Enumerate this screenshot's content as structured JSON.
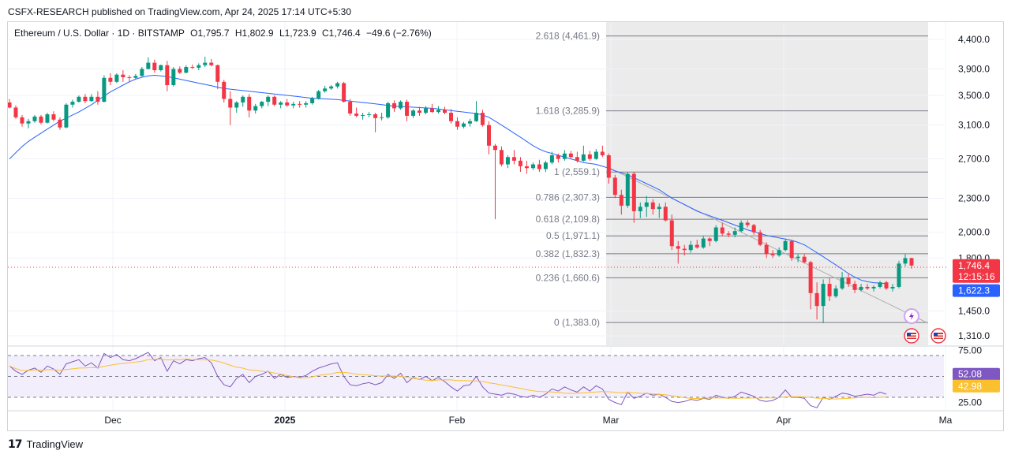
{
  "header": {
    "publisher": "CSFX-RESEARCH published on TradingView.com, Apr 24, 2025 17:14 UTC+5:30"
  },
  "legend": {
    "symbol": "Ethereum / U.S. Dollar · 1D · BITSTAMP",
    "open": "O1,795.7",
    "high": "H1,802.9",
    "low": "L1,723.9",
    "close": "C1,746.4",
    "change": "−49.6 (−2.76%)"
  },
  "footer": {
    "brand": "TradingView"
  },
  "colors": {
    "up": "#089981",
    "down": "#f23645",
    "ma": "#2962ff",
    "rsi": "#7e57c2",
    "rsi_ma": "#fbc02d",
    "fib": "#787b86"
  },
  "badges": {
    "price": "1,746.4",
    "countdown": "12:15:16",
    "ma": "1,622.3",
    "rsi": "52.08",
    "rsi_ma": "42.98"
  },
  "chart_data": {
    "type": "candlestick",
    "x_ticks": [
      "Dec",
      "2025",
      "Feb",
      "Mar",
      "Apr",
      "Ma"
    ],
    "y_ticks": [
      "4,400.0",
      "3,900.0",
      "3,500.0",
      "3,100.0",
      "2,700.0",
      "2,300.0",
      "2,000.0",
      "1,800.0",
      "1,450.0",
      "1,310.0"
    ],
    "y_scale": "log",
    "fib_levels": [
      {
        "label": "2.618 (4,461.9)",
        "value": 4461.9
      },
      {
        "label": "1.618 (3,285.9)",
        "value": 3285.9
      },
      {
        "label": "1 (2,559.1)",
        "value": 2559.1
      },
      {
        "label": "0.786 (2,307.3)",
        "value": 2307.3
      },
      {
        "label": "0.618 (2,109.8)",
        "value": 2109.8
      },
      {
        "label": "0.5 (1,971.1)",
        "value": 1971.1
      },
      {
        "label": "0.382 (1,832.3)",
        "value": 1832.3
      },
      {
        "label": "0.236 (1,660.6)",
        "value": 1660.6
      },
      {
        "label": "0 (1,383.0)",
        "value": 1383.0
      }
    ],
    "ohlc": [
      [
        3400,
        3450,
        3320,
        3330
      ],
      [
        3330,
        3360,
        3180,
        3200
      ],
      [
        3200,
        3230,
        3080,
        3120
      ],
      [
        3120,
        3180,
        3060,
        3150
      ],
      [
        3150,
        3230,
        3130,
        3210
      ],
      [
        3210,
        3230,
        3110,
        3130
      ],
      [
        3130,
        3260,
        3120,
        3240
      ],
      [
        3240,
        3280,
        3150,
        3170
      ],
      [
        3170,
        3200,
        3040,
        3070
      ],
      [
        3070,
        3390,
        3060,
        3370
      ],
      [
        3370,
        3440,
        3330,
        3410
      ],
      [
        3410,
        3500,
        3400,
        3480
      ],
      [
        3480,
        3520,
        3390,
        3420
      ],
      [
        3420,
        3520,
        3410,
        3480
      ],
      [
        3480,
        3560,
        3370,
        3410
      ],
      [
        3410,
        3800,
        3400,
        3760
      ],
      [
        3760,
        3830,
        3650,
        3700
      ],
      [
        3700,
        3830,
        3680,
        3810
      ],
      [
        3810,
        3880,
        3700,
        3770
      ],
      [
        3770,
        3800,
        3700,
        3760
      ],
      [
        3760,
        3820,
        3740,
        3790
      ],
      [
        3790,
        3930,
        3780,
        3900
      ],
      [
        3900,
        4090,
        3890,
        4000
      ],
      [
        4000,
        4050,
        3840,
        3880
      ],
      [
        3880,
        3970,
        3860,
        3960
      ],
      [
        3960,
        4030,
        3560,
        3650
      ],
      [
        3650,
        3930,
        3630,
        3900
      ],
      [
        3900,
        3940,
        3820,
        3840
      ],
      [
        3840,
        3960,
        3830,
        3930
      ],
      [
        3930,
        3970,
        3900,
        3920
      ],
      [
        3920,
        3990,
        3880,
        3960
      ],
      [
        3960,
        4100,
        3930,
        4000
      ],
      [
        4000,
        4060,
        3940,
        3960
      ],
      [
        3960,
        3970,
        3590,
        3700
      ],
      [
        3700,
        3730,
        3400,
        3450
      ],
      [
        3450,
        3560,
        3100,
        3330
      ],
      [
        3330,
        3420,
        3260,
        3400
      ],
      [
        3400,
        3500,
        3340,
        3480
      ],
      [
        3480,
        3520,
        3200,
        3290
      ],
      [
        3290,
        3380,
        3250,
        3350
      ],
      [
        3350,
        3420,
        3320,
        3410
      ],
      [
        3410,
        3500,
        3350,
        3480
      ],
      [
        3480,
        3500,
        3350,
        3370
      ],
      [
        3370,
        3420,
        3320,
        3400
      ],
      [
        3400,
        3450,
        3340,
        3360
      ],
      [
        3360,
        3410,
        3320,
        3380
      ],
      [
        3380,
        3420,
        3330,
        3370
      ],
      [
        3370,
        3420,
        3330,
        3390
      ],
      [
        3390,
        3480,
        3370,
        3460
      ],
      [
        3460,
        3580,
        3440,
        3560
      ],
      [
        3560,
        3640,
        3540,
        3600
      ],
      [
        3600,
        3650,
        3580,
        3630
      ],
      [
        3630,
        3700,
        3600,
        3680
      ],
      [
        3680,
        3700,
        3400,
        3410
      ],
      [
        3410,
        3450,
        3220,
        3250
      ],
      [
        3250,
        3330,
        3200,
        3220
      ],
      [
        3220,
        3260,
        3170,
        3230
      ],
      [
        3230,
        3270,
        3200,
        3240
      ],
      [
        3240,
        3260,
        3010,
        3190
      ],
      [
        3190,
        3260,
        3160,
        3200
      ],
      [
        3200,
        3410,
        3180,
        3390
      ],
      [
        3390,
        3430,
        3270,
        3320
      ],
      [
        3320,
        3430,
        3300,
        3410
      ],
      [
        3410,
        3440,
        3150,
        3220
      ],
      [
        3220,
        3310,
        3190,
        3290
      ],
      [
        3290,
        3340,
        3220,
        3260
      ],
      [
        3260,
        3350,
        3240,
        3320
      ],
      [
        3320,
        3380,
        3260,
        3270
      ],
      [
        3270,
        3350,
        3250,
        3300
      ],
      [
        3300,
        3340,
        3240,
        3260
      ],
      [
        3260,
        3310,
        3120,
        3150
      ],
      [
        3150,
        3200,
        3040,
        3080
      ],
      [
        3080,
        3140,
        3060,
        3120
      ],
      [
        3120,
        3180,
        3080,
        3150
      ],
      [
        3150,
        3420,
        3140,
        3260
      ],
      [
        3260,
        3300,
        3080,
        3100
      ],
      [
        3100,
        3150,
        2750,
        2850
      ],
      [
        2850,
        2870,
        2110,
        2800
      ],
      [
        2800,
        2840,
        2620,
        2640
      ],
      [
        2640,
        2740,
        2600,
        2720
      ],
      [
        2720,
        2800,
        2640,
        2680
      ],
      [
        2680,
        2720,
        2560,
        2620
      ],
      [
        2620,
        2680,
        2540,
        2600
      ],
      [
        2600,
        2660,
        2580,
        2640
      ],
      [
        2640,
        2690,
        2560,
        2590
      ],
      [
        2590,
        2680,
        2560,
        2660
      ],
      [
        2660,
        2780,
        2640,
        2740
      ],
      [
        2740,
        2760,
        2660,
        2700
      ],
      [
        2700,
        2800,
        2680,
        2760
      ],
      [
        2760,
        2790,
        2700,
        2720
      ],
      [
        2720,
        2780,
        2660,
        2680
      ],
      [
        2680,
        2850,
        2670,
        2750
      ],
      [
        2750,
        2790,
        2680,
        2700
      ],
      [
        2700,
        2810,
        2690,
        2780
      ],
      [
        2780,
        2850,
        2720,
        2740
      ],
      [
        2740,
        2760,
        2440,
        2500
      ],
      [
        2500,
        2530,
        2300,
        2330
      ],
      [
        2330,
        2380,
        2150,
        2230
      ],
      [
        2230,
        2560,
        2210,
        2540
      ],
      [
        2540,
        2560,
        2080,
        2180
      ],
      [
        2180,
        2260,
        2120,
        2220
      ],
      [
        2220,
        2320,
        2130,
        2260
      ],
      [
        2260,
        2290,
        2150,
        2200
      ],
      [
        2200,
        2250,
        2120,
        2220
      ],
      [
        2220,
        2260,
        2090,
        2100
      ],
      [
        2100,
        2150,
        1860,
        1890
      ],
      [
        1890,
        1930,
        1760,
        1870
      ],
      [
        1870,
        1900,
        1820,
        1860
      ],
      [
        1860,
        1930,
        1840,
        1900
      ],
      [
        1900,
        1940,
        1870,
        1880
      ],
      [
        1880,
        1970,
        1870,
        1950
      ],
      [
        1950,
        1960,
        1890,
        1930
      ],
      [
        1930,
        2060,
        1920,
        2040
      ],
      [
        2040,
        2080,
        1970,
        1990
      ],
      [
        1990,
        2010,
        1960,
        1980
      ],
      [
        1980,
        2040,
        1960,
        2010
      ],
      [
        2010,
        2100,
        2000,
        2080
      ],
      [
        2080,
        2100,
        2040,
        2060
      ],
      [
        2060,
        2070,
        1980,
        2000
      ],
      [
        2000,
        2020,
        1890,
        1900
      ],
      [
        1900,
        1920,
        1800,
        1830
      ],
      [
        1830,
        1860,
        1800,
        1820
      ],
      [
        1820,
        1880,
        1810,
        1860
      ],
      [
        1860,
        1950,
        1850,
        1930
      ],
      [
        1930,
        1940,
        1780,
        1800
      ],
      [
        1800,
        1830,
        1770,
        1810
      ],
      [
        1810,
        1830,
        1760,
        1770
      ],
      [
        1770,
        1780,
        1460,
        1560
      ],
      [
        1560,
        1630,
        1400,
        1480
      ],
      [
        1480,
        1650,
        1380,
        1620
      ],
      [
        1620,
        1660,
        1510,
        1540
      ],
      [
        1540,
        1610,
        1530,
        1590
      ],
      [
        1590,
        1700,
        1580,
        1660
      ],
      [
        1660,
        1690,
        1600,
        1620
      ],
      [
        1620,
        1640,
        1560,
        1580
      ],
      [
        1580,
        1620,
        1570,
        1600
      ],
      [
        1600,
        1620,
        1580,
        1590
      ],
      [
        1590,
        1610,
        1570,
        1600
      ],
      [
        1600,
        1640,
        1590,
        1630
      ],
      [
        1630,
        1640,
        1580,
        1590
      ],
      [
        1590,
        1620,
        1570,
        1600
      ],
      [
        1600,
        1780,
        1590,
        1760
      ],
      [
        1760,
        1830,
        1740,
        1800
      ],
      [
        1800,
        1803,
        1724,
        1746
      ]
    ],
    "ma_20": [
      2700,
      2770,
      2840,
      2900,
      2950,
      3000,
      3050,
      3100,
      3150,
      3190,
      3230,
      3270,
      3320,
      3370,
      3430,
      3490,
      3550,
      3600,
      3650,
      3700,
      3740,
      3770,
      3790,
      3800,
      3790,
      3780,
      3760,
      3740,
      3720,
      3700,
      3680,
      3660,
      3640,
      3620,
      3600,
      3590,
      3580,
      3570,
      3560,
      3550,
      3540,
      3530,
      3520,
      3510,
      3500,
      3490,
      3480,
      3470,
      3460,
      3455,
      3450,
      3445,
      3440,
      3430,
      3420,
      3410,
      3400,
      3390,
      3380,
      3370,
      3360,
      3350,
      3345,
      3340,
      3335,
      3330,
      3325,
      3320,
      3310,
      3300,
      3290,
      3280,
      3270,
      3260,
      3250,
      3230,
      3200,
      3150,
      3100,
      3050,
      3000,
      2950,
      2900,
      2850,
      2810,
      2780,
      2760,
      2740,
      2720,
      2700,
      2680,
      2660,
      2650,
      2640,
      2620,
      2600,
      2570,
      2550,
      2530,
      2500,
      2470,
      2440,
      2410,
      2380,
      2340,
      2300,
      2270,
      2240,
      2210,
      2180,
      2160,
      2140,
      2120,
      2100,
      2080,
      2060,
      2040,
      2020,
      2005,
      1990,
      1975,
      1965,
      1955,
      1945,
      1935,
      1920,
      1900,
      1870,
      1840,
      1810,
      1780,
      1750,
      1720,
      1690,
      1665,
      1645,
      1635,
      1628,
      1625,
      1622
    ],
    "rsi": [
      60,
      55,
      52,
      56,
      58,
      54,
      60,
      57,
      52,
      62,
      64,
      66,
      60,
      63,
      58,
      72,
      68,
      71,
      66,
      65,
      67,
      70,
      73,
      65,
      68,
      55,
      65,
      62,
      66,
      65,
      67,
      68,
      63,
      50,
      42,
      40,
      48,
      52,
      44,
      50,
      52,
      55,
      48,
      52,
      49,
      50,
      49,
      51,
      55,
      58,
      60,
      62,
      63,
      50,
      42,
      41,
      43,
      44,
      42,
      44,
      52,
      48,
      53,
      44,
      49,
      47,
      50,
      46,
      49,
      45,
      40,
      36,
      41,
      42,
      50,
      40,
      34,
      33,
      32,
      34,
      33,
      31,
      30,
      32,
      30,
      33,
      38,
      36,
      40,
      37,
      35,
      40,
      36,
      41,
      38,
      28,
      25,
      23,
      35,
      29,
      31,
      34,
      32,
      33,
      30,
      26,
      25,
      26,
      28,
      27,
      29,
      28,
      32,
      30,
      29,
      31,
      35,
      33,
      31,
      27,
      26,
      27,
      30,
      37,
      30,
      30,
      29,
      22,
      20,
      30,
      28,
      31,
      34,
      33,
      31,
      32,
      33,
      32,
      35,
      33
    ],
    "rsi_extra": [
      33,
      34,
      50,
      52
    ],
    "rsi_levels": [
      70,
      50,
      30
    ],
    "rsi_axis": [
      "75.00",
      "25.00"
    ]
  }
}
